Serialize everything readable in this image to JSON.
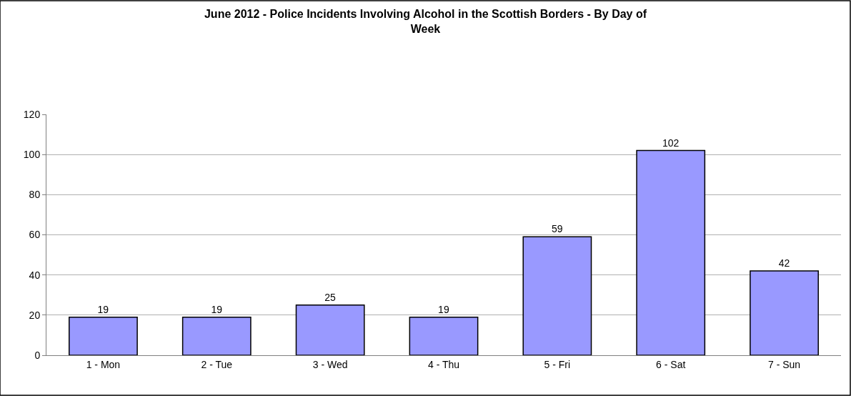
{
  "chart_data": {
    "type": "bar",
    "title": "June 2012 - Police Incidents Involving Alcohol in the Scottish Borders - By Day of Week",
    "categories": [
      "1 - Mon",
      "2 - Tue",
      "3 - Wed",
      "4 - Thu",
      "5 - Fri",
      "6 - Sat",
      "7 - Sun"
    ],
    "values": [
      19,
      19,
      25,
      19,
      59,
      102,
      42
    ],
    "color": "#9999ff",
    "ylim": [
      0,
      120
    ],
    "yticks": [
      0,
      20,
      40,
      60,
      80,
      100,
      120
    ],
    "grid": "y",
    "data_labels": true,
    "legend": false
  }
}
